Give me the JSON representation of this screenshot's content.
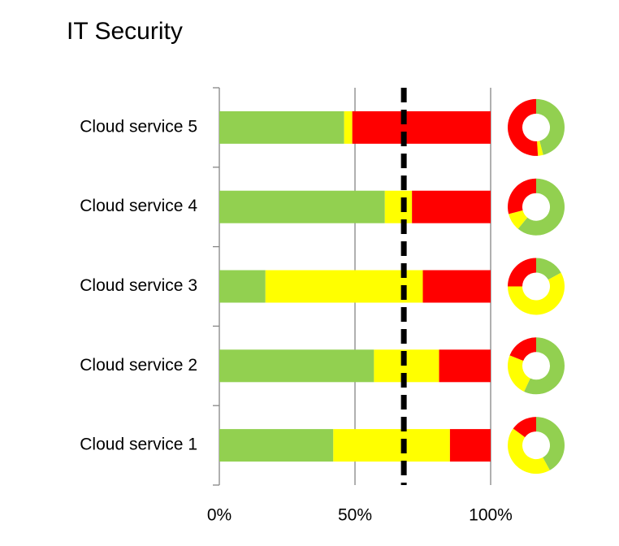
{
  "chart_data": {
    "type": "stacked-bar-donut",
    "title": "IT Security",
    "categories": [
      "Cloud service 1",
      "Cloud service 2",
      "Cloud service 3",
      "Cloud service 4",
      "Cloud service 5"
    ],
    "series": [
      {
        "color": "#92d050",
        "values": [
          42,
          57,
          17,
          61,
          46
        ]
      },
      {
        "color": "#ffff00",
        "values": [
          43,
          24,
          58,
          10,
          3
        ]
      },
      {
        "color": "#ff0000",
        "values": [
          15,
          19,
          25,
          29,
          51
        ]
      }
    ],
    "xlim": [
      0,
      100
    ],
    "xticks": [
      {
        "value": 0,
        "label": "0%"
      },
      {
        "value": 50,
        "label": "50%"
      },
      {
        "value": 100,
        "label": "100%"
      }
    ],
    "grid": true,
    "reference_line": 68
  }
}
